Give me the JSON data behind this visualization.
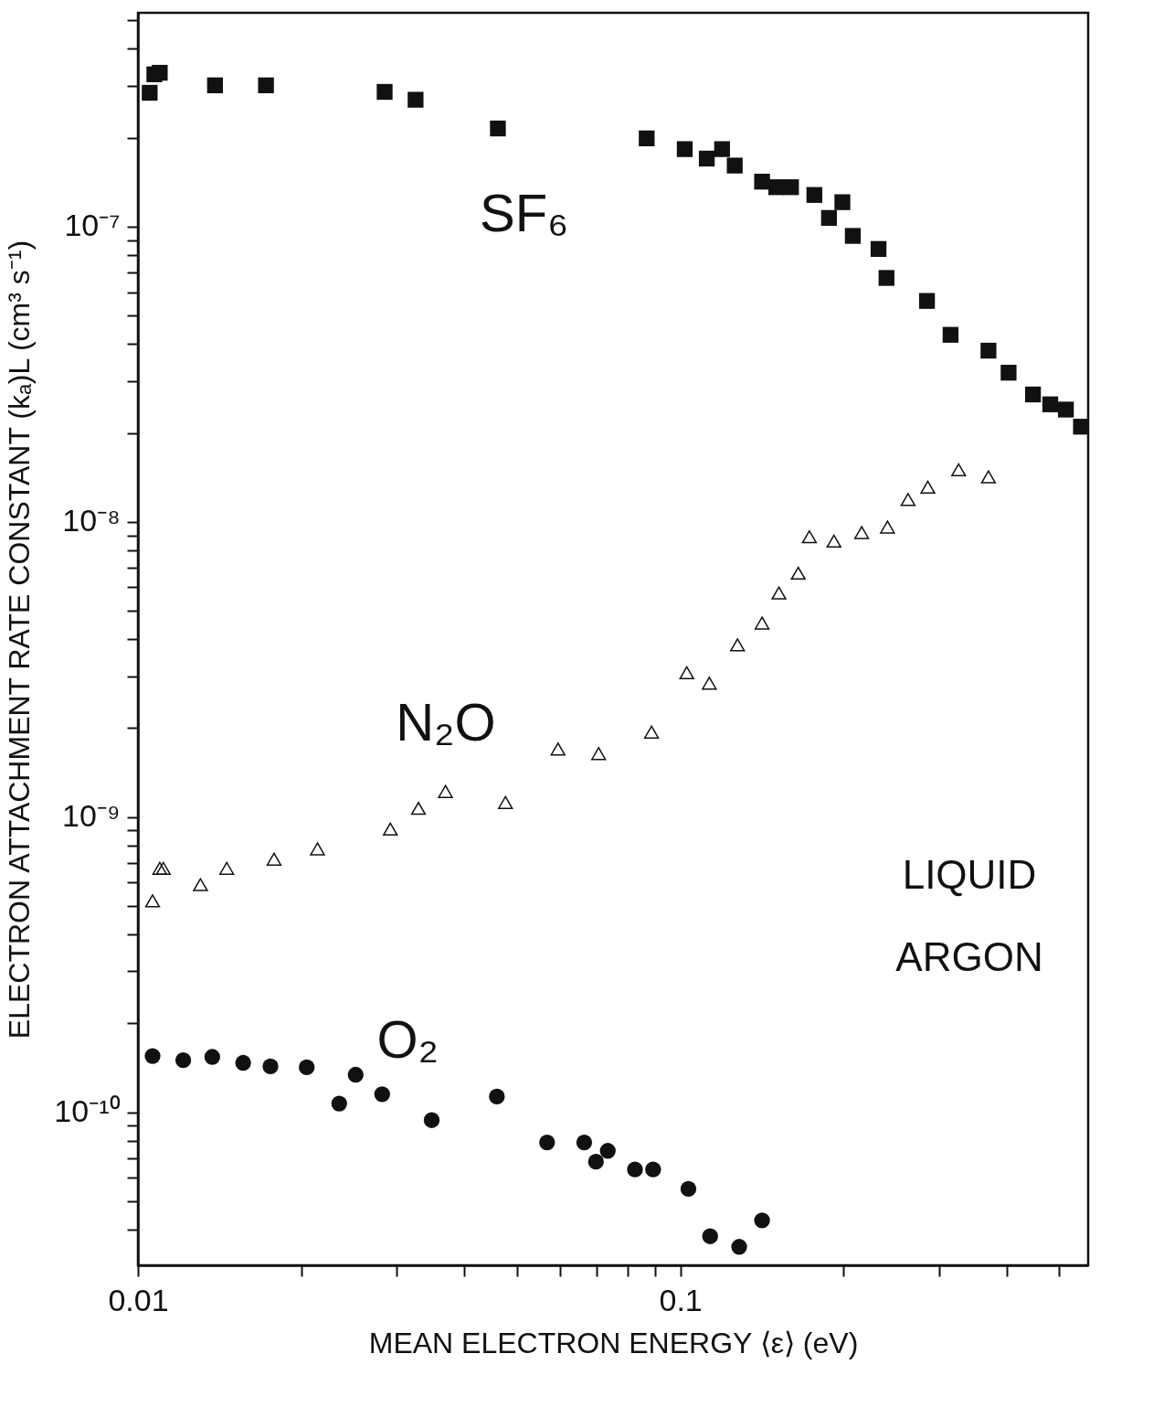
{
  "chart_data": {
    "type": "scatter",
    "xlabel": "MEAN ELECTRON ENERGY ⟨ε⟩ (eV)",
    "ylabel": "ELECTRON ATTACHMENT RATE CONSTANT (kₐ)L (cm³ s⁻¹)",
    "log": "xy",
    "grid": false,
    "legend": false,
    "xlim": [
      0.01,
      0.565
    ],
    "ylim": [
      3.03e-11,
      5.3e-07
    ],
    "xticks": [
      0.01,
      {
        "value": 0.02,
        "label": null
      },
      {
        "value": 0.03,
        "label": null
      },
      {
        "value": 0.04,
        "label": null
      },
      {
        "value": 0.05,
        "label": null
      },
      {
        "value": 0.06,
        "label": null
      },
      {
        "value": 0.07,
        "label": null
      },
      {
        "value": 0.08,
        "label": null
      },
      {
        "value": 0.09,
        "label": null
      },
      0.1,
      {
        "value": 0.2,
        "label": null
      },
      {
        "value": 0.3,
        "label": null
      },
      {
        "value": 0.4,
        "label": null
      },
      {
        "value": 0.5,
        "label": null
      }
    ],
    "yticks": [
      {
        "value": 4e-11,
        "label": null
      },
      {
        "value": 5e-11,
        "label": null
      },
      {
        "value": 6e-11,
        "label": null
      },
      {
        "value": 7e-11,
        "label": null
      },
      {
        "value": 8e-11,
        "label": null
      },
      {
        "value": 9e-11,
        "label": null
      },
      {
        "value": 1e-10,
        "label": "10⁻¹⁰"
      },
      {
        "value": 2e-10,
        "label": null
      },
      {
        "value": 3e-10,
        "label": null
      },
      {
        "value": 4e-10,
        "label": null
      },
      {
        "value": 5e-10,
        "label": null
      },
      {
        "value": 6e-10,
        "label": null
      },
      {
        "value": 7e-10,
        "label": null
      },
      {
        "value": 8e-10,
        "label": null
      },
      {
        "value": 9e-10,
        "label": null
      },
      {
        "value": 1e-09,
        "label": "10⁻⁹"
      },
      {
        "value": 2e-09,
        "label": null
      },
      {
        "value": 3e-09,
        "label": null
      },
      {
        "value": 4e-09,
        "label": null
      },
      {
        "value": 5e-09,
        "label": null
      },
      {
        "value": 6e-09,
        "label": null
      },
      {
        "value": 7e-09,
        "label": null
      },
      {
        "value": 8e-09,
        "label": null
      },
      {
        "value": 9e-09,
        "label": null
      },
      {
        "value": 1e-08,
        "label": "10⁻⁸"
      },
      {
        "value": 2e-08,
        "label": null
      },
      {
        "value": 3e-08,
        "label": null
      },
      {
        "value": 4e-08,
        "label": null
      },
      {
        "value": 5e-08,
        "label": null
      },
      {
        "value": 6e-08,
        "label": null
      },
      {
        "value": 7e-08,
        "label": null
      },
      {
        "value": 8e-08,
        "label": null
      },
      {
        "value": 9e-08,
        "label": null
      },
      {
        "value": 1e-07,
        "label": "10⁻⁷"
      },
      {
        "value": 2e-07,
        "label": null
      },
      {
        "value": 3e-07,
        "label": null
      },
      {
        "value": 4e-07,
        "label": null
      },
      {
        "value": 5e-07,
        "label": null
      }
    ],
    "annotations": [
      "LIQUID ARGON"
    ],
    "series": [
      {
        "name": "SF₆",
        "color": "#111111",
        "marker": "square",
        "x": [
          0.01051,
          0.01072,
          0.01097,
          0.01387,
          0.01722,
          0.0285,
          0.0325,
          0.0461,
          0.0867,
          0.1019,
          0.1119,
          0.1194,
          0.126,
          0.1415,
          0.1503,
          0.16,
          0.1767,
          0.188,
          0.199,
          0.208,
          0.232,
          0.24,
          0.285,
          0.315,
          0.37,
          0.403,
          0.447,
          0.481,
          0.514,
          0.548
        ],
        "values": [
          2.84e-07,
          3.28e-07,
          3.32e-07,
          3.01e-07,
          3.01e-07,
          2.86e-07,
          2.69e-07,
          2.15e-07,
          1.99e-07,
          1.83e-07,
          1.7e-07,
          1.83e-07,
          1.61e-07,
          1.42e-07,
          1.36e-07,
          1.36e-07,
          1.28e-07,
          1.07e-07,
          1.21e-07,
          9.3e-08,
          8.4e-08,
          6.7e-08,
          5.6e-08,
          4.3e-08,
          3.8e-08,
          3.2e-08,
          2.7e-08,
          2.5e-08,
          2.4e-08,
          2.1e-08
        ]
      },
      {
        "name": "N₂O",
        "color": "#111111",
        "marker": "triangle",
        "x": [
          0.01064,
          0.01097,
          0.01114,
          0.01304,
          0.01458,
          0.01782,
          0.02143,
          0.0292,
          0.0329,
          0.0369,
          0.0476,
          0.0595,
          0.0707,
          0.0885,
          0.1028,
          0.1131,
          0.1275,
          0.1415,
          0.152,
          0.165,
          0.173,
          0.192,
          0.216,
          0.241,
          0.263,
          0.286,
          0.326,
          0.37
        ],
        "values": [
          5.2e-10,
          6.7e-10,
          6.7e-10,
          5.9e-10,
          6.7e-10,
          7.2e-10,
          7.8e-10,
          9.1e-10,
          1.07e-09,
          1.22e-09,
          1.12e-09,
          1.7e-09,
          1.64e-09,
          1.94e-09,
          3.08e-09,
          2.84e-09,
          3.83e-09,
          4.54e-09,
          5.74e-09,
          6.7e-09,
          8.9e-09,
          8.6e-09,
          9.2e-09,
          9.6e-09,
          1.19e-08,
          1.31e-08,
          1.5e-08,
          1.42e-08
        ]
      },
      {
        "name": "O₂",
        "color": "#111111",
        "marker": "circle",
        "x": [
          0.01064,
          0.01212,
          0.01371,
          0.01563,
          0.01755,
          0.02047,
          0.0235,
          0.0252,
          0.0282,
          0.0348,
          0.0459,
          0.0568,
          0.0665,
          0.0699,
          0.0735,
          0.0825,
          0.0891,
          0.1035,
          0.1135,
          0.1284,
          0.1415
        ],
        "values": [
          1.55e-10,
          1.5e-10,
          1.54e-10,
          1.47e-10,
          1.43e-10,
          1.42e-10,
          1.07e-10,
          1.34e-10,
          1.15e-10,
          9.4e-11,
          1.13e-10,
          7.9e-11,
          7.9e-11,
          6.8e-11,
          7.4e-11,
          6.4e-11,
          6.4e-11,
          5.5e-11,
          3.8e-11,
          3.5e-11,
          4.3e-11
        ]
      }
    ]
  }
}
